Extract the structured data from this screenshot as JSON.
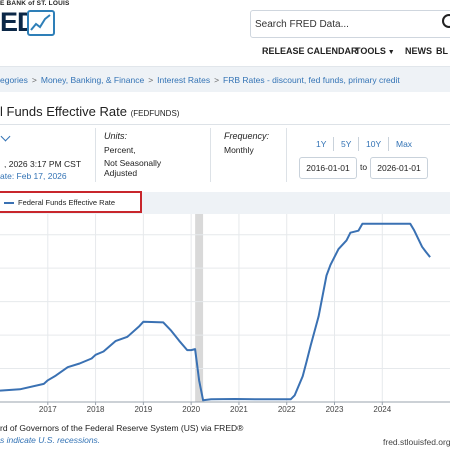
{
  "header": {
    "bank_name": "E BANK of ST. LOUIS",
    "logo_text": "ED",
    "search_placeholder": "Search FRED Data...",
    "nav": {
      "release_calendar": "RELEASE CALENDAR",
      "tools": "TOOLS",
      "news": "NEWS",
      "blog": "BL"
    }
  },
  "breadcrumb": [
    "egories",
    "Money, Banking, & Finance",
    "Interest Rates",
    "FRB Rates - discount, fed funds, primary credit"
  ],
  "breadcrumb_sep": ">",
  "series": {
    "title": "l Funds Effective Rate",
    "code": "(FEDFUNDS)"
  },
  "meta": {
    "observation_date": ", 2026 3:17 PM CST",
    "next_release": "ate: Feb 17, 2026",
    "units_label": "Units:",
    "units_value": "Percent,",
    "units_adjustment": "Not Seasonally Adjusted",
    "frequency_label": "Frequency:",
    "frequency_value": "Monthly",
    "range_buttons": [
      "1Y",
      "5Y",
      "10Y",
      "Max"
    ],
    "start_date": "2016-01-01",
    "to_label": "to",
    "end_date": "2026-01-01"
  },
  "legend": {
    "label": "Federal Funds Effective Rate"
  },
  "colors": {
    "series": "#3a71b3",
    "recession": "#d9d9d9",
    "grid": "#e6e9ec",
    "highlight": "#c8262c",
    "link": "#3373b5"
  },
  "chart_data": {
    "type": "line",
    "xlim": [
      "2016-01",
      "2025-06"
    ],
    "ylim": [
      0,
      5.5
    ],
    "x_ticks": [
      "2017",
      "2018",
      "2019",
      "2020",
      "2021",
      "2022",
      "2023",
      "2024"
    ],
    "grid": true,
    "recessions": [
      {
        "start": "2020-02",
        "end": "2020-04"
      }
    ],
    "series": [
      {
        "name": "Federal Funds Effective Rate",
        "points": [
          [
            "2016-01",
            0.34
          ],
          [
            "2016-06",
            0.38
          ],
          [
            "2016-12",
            0.54
          ],
          [
            "2017-01",
            0.65
          ],
          [
            "2017-03",
            0.79
          ],
          [
            "2017-06",
            1.04
          ],
          [
            "2017-09",
            1.15
          ],
          [
            "2017-12",
            1.3
          ],
          [
            "2018-01",
            1.41
          ],
          [
            "2018-03",
            1.51
          ],
          [
            "2018-06",
            1.82
          ],
          [
            "2018-09",
            1.95
          ],
          [
            "2018-12",
            2.27
          ],
          [
            "2019-01",
            2.4
          ],
          [
            "2019-06",
            2.38
          ],
          [
            "2019-08",
            2.13
          ],
          [
            "2019-10",
            1.83
          ],
          [
            "2019-12",
            1.55
          ],
          [
            "2020-01",
            1.55
          ],
          [
            "2020-02",
            1.58
          ],
          [
            "2020-03",
            0.65
          ],
          [
            "2020-04",
            0.05
          ],
          [
            "2020-06",
            0.08
          ],
          [
            "2020-12",
            0.09
          ],
          [
            "2021-06",
            0.08
          ],
          [
            "2021-12",
            0.08
          ],
          [
            "2022-02",
            0.08
          ],
          [
            "2022-03",
            0.2
          ],
          [
            "2022-05",
            0.77
          ],
          [
            "2022-06",
            1.21
          ],
          [
            "2022-07",
            1.68
          ],
          [
            "2022-09",
            2.56
          ],
          [
            "2022-11",
            3.78
          ],
          [
            "2022-12",
            4.1
          ],
          [
            "2023-02",
            4.57
          ],
          [
            "2023-04",
            4.83
          ],
          [
            "2023-05",
            5.06
          ],
          [
            "2023-07",
            5.12
          ],
          [
            "2023-08",
            5.33
          ],
          [
            "2024-08",
            5.33
          ],
          [
            "2024-09",
            5.13
          ],
          [
            "2024-11",
            4.64
          ],
          [
            "2024-12",
            4.48
          ],
          [
            "2025-01",
            4.33
          ]
        ]
      }
    ]
  },
  "footer": {
    "source": "rd of Governors of the Federal Reserve System (US) via FRED®",
    "recession_note": "s indicate U.S. recessions.",
    "url": "fred.stlouisfed.org"
  }
}
